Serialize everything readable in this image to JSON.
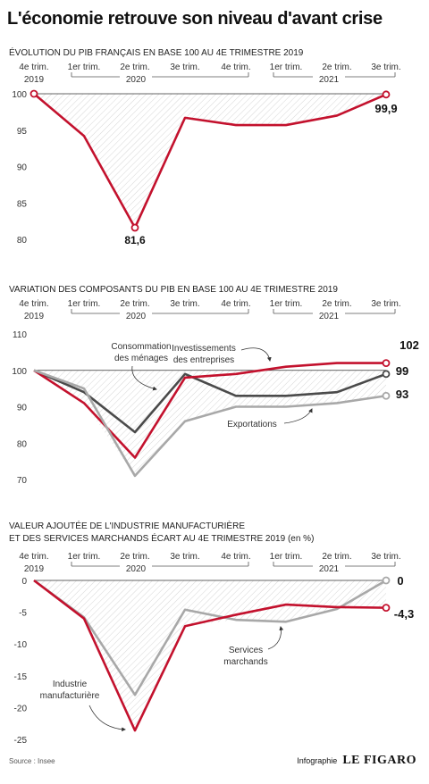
{
  "header": {
    "title": "L'économie retrouve son niveau d'avant crise"
  },
  "footer": {
    "source": "Source : Insee",
    "credit_prefix": "Infographie",
    "credit_brand": "LE FIGARO"
  },
  "periods": [
    "4e trim.\n2019",
    "1er trim.",
    "2e trim.",
    "3e trim.",
    "4e trim.",
    "1er trim.",
    "2e trim.",
    "3e trim."
  ],
  "years": [
    "2020",
    "2021"
  ],
  "colors": {
    "red": "#c3112d",
    "dark": "#4a4a4a",
    "gray": "#a8a8a8",
    "hatch": "#cfcfcf"
  },
  "chart_data": [
    {
      "type": "line",
      "title": "ÉVOLUTION DU PIB FRANÇAIS EN BASE 100 AU 4E TRIMESTRE 2019",
      "ylim": [
        80,
        100
      ],
      "yticks": [
        "100",
        "95",
        "90",
        "85",
        "80"
      ],
      "yticks_values": [
        100,
        95,
        90,
        85,
        80
      ],
      "baseline": 100,
      "series": [
        {
          "color": "red",
          "values": [
            100,
            94.2,
            81.6,
            96.7,
            95.7,
            95.7,
            97.0,
            99.9
          ]
        }
      ],
      "labels": {
        "low": "81,6",
        "end": "99,9"
      }
    },
    {
      "type": "line",
      "title": "VARIATION DES COMPOSANTS DU PIB EN BASE 100 AU 4E TRIMESTRE 2019",
      "ylim": [
        70,
        110
      ],
      "yticks": [
        "110",
        "100",
        "90",
        "80",
        "70"
      ],
      "yticks_values": [
        110,
        100,
        90,
        80,
        70
      ],
      "baseline": 100,
      "series": [
        {
          "name": "Consommation des ménages",
          "color": "dark",
          "values": [
            100,
            94,
            83,
            99,
            93,
            93,
            94,
            99
          ],
          "end_label": "99"
        },
        {
          "name": "Investissements des entreprises",
          "color": "red",
          "values": [
            100,
            91,
            76,
            98,
            99,
            101,
            102,
            102
          ],
          "end_label": "102"
        },
        {
          "name": "Exportations",
          "color": "gray",
          "values": [
            100,
            95,
            71,
            86,
            90,
            90,
            91,
            93
          ],
          "end_label": "93"
        }
      ],
      "annotations": [
        "Consommation",
        "des ménages",
        "Investissements",
        "des entreprises",
        "Exportations"
      ]
    },
    {
      "type": "line",
      "title": "VALEUR AJOUTÉE DE L'INDUSTRIE MANUFACTURIÈRE\nET DES SERVICES MARCHANDS ÉCART AU 4E TRIMESTRE 2019 (en %)",
      "ylim": [
        -25,
        0
      ],
      "yticks": [
        "0",
        "-5",
        "-10",
        "-15",
        "-20",
        "-25"
      ],
      "yticks_values": [
        0,
        -5,
        -10,
        -15,
        -20,
        -25
      ],
      "baseline": 0,
      "series": [
        {
          "name": "Services marchands",
          "color": "gray",
          "values": [
            0,
            -5.8,
            -18,
            -4.6,
            -6.2,
            -6.5,
            -4.5,
            0
          ],
          "end_label": "0"
        },
        {
          "name": "Industrie manufacturière",
          "color": "red",
          "values": [
            0,
            -6,
            -23.6,
            -7.2,
            -5.4,
            -3.8,
            -4.2,
            -4.3
          ],
          "end_label": "-4,3"
        }
      ],
      "annotations": [
        "Services",
        "marchands",
        "Industrie",
        "manufacturière"
      ]
    }
  ]
}
